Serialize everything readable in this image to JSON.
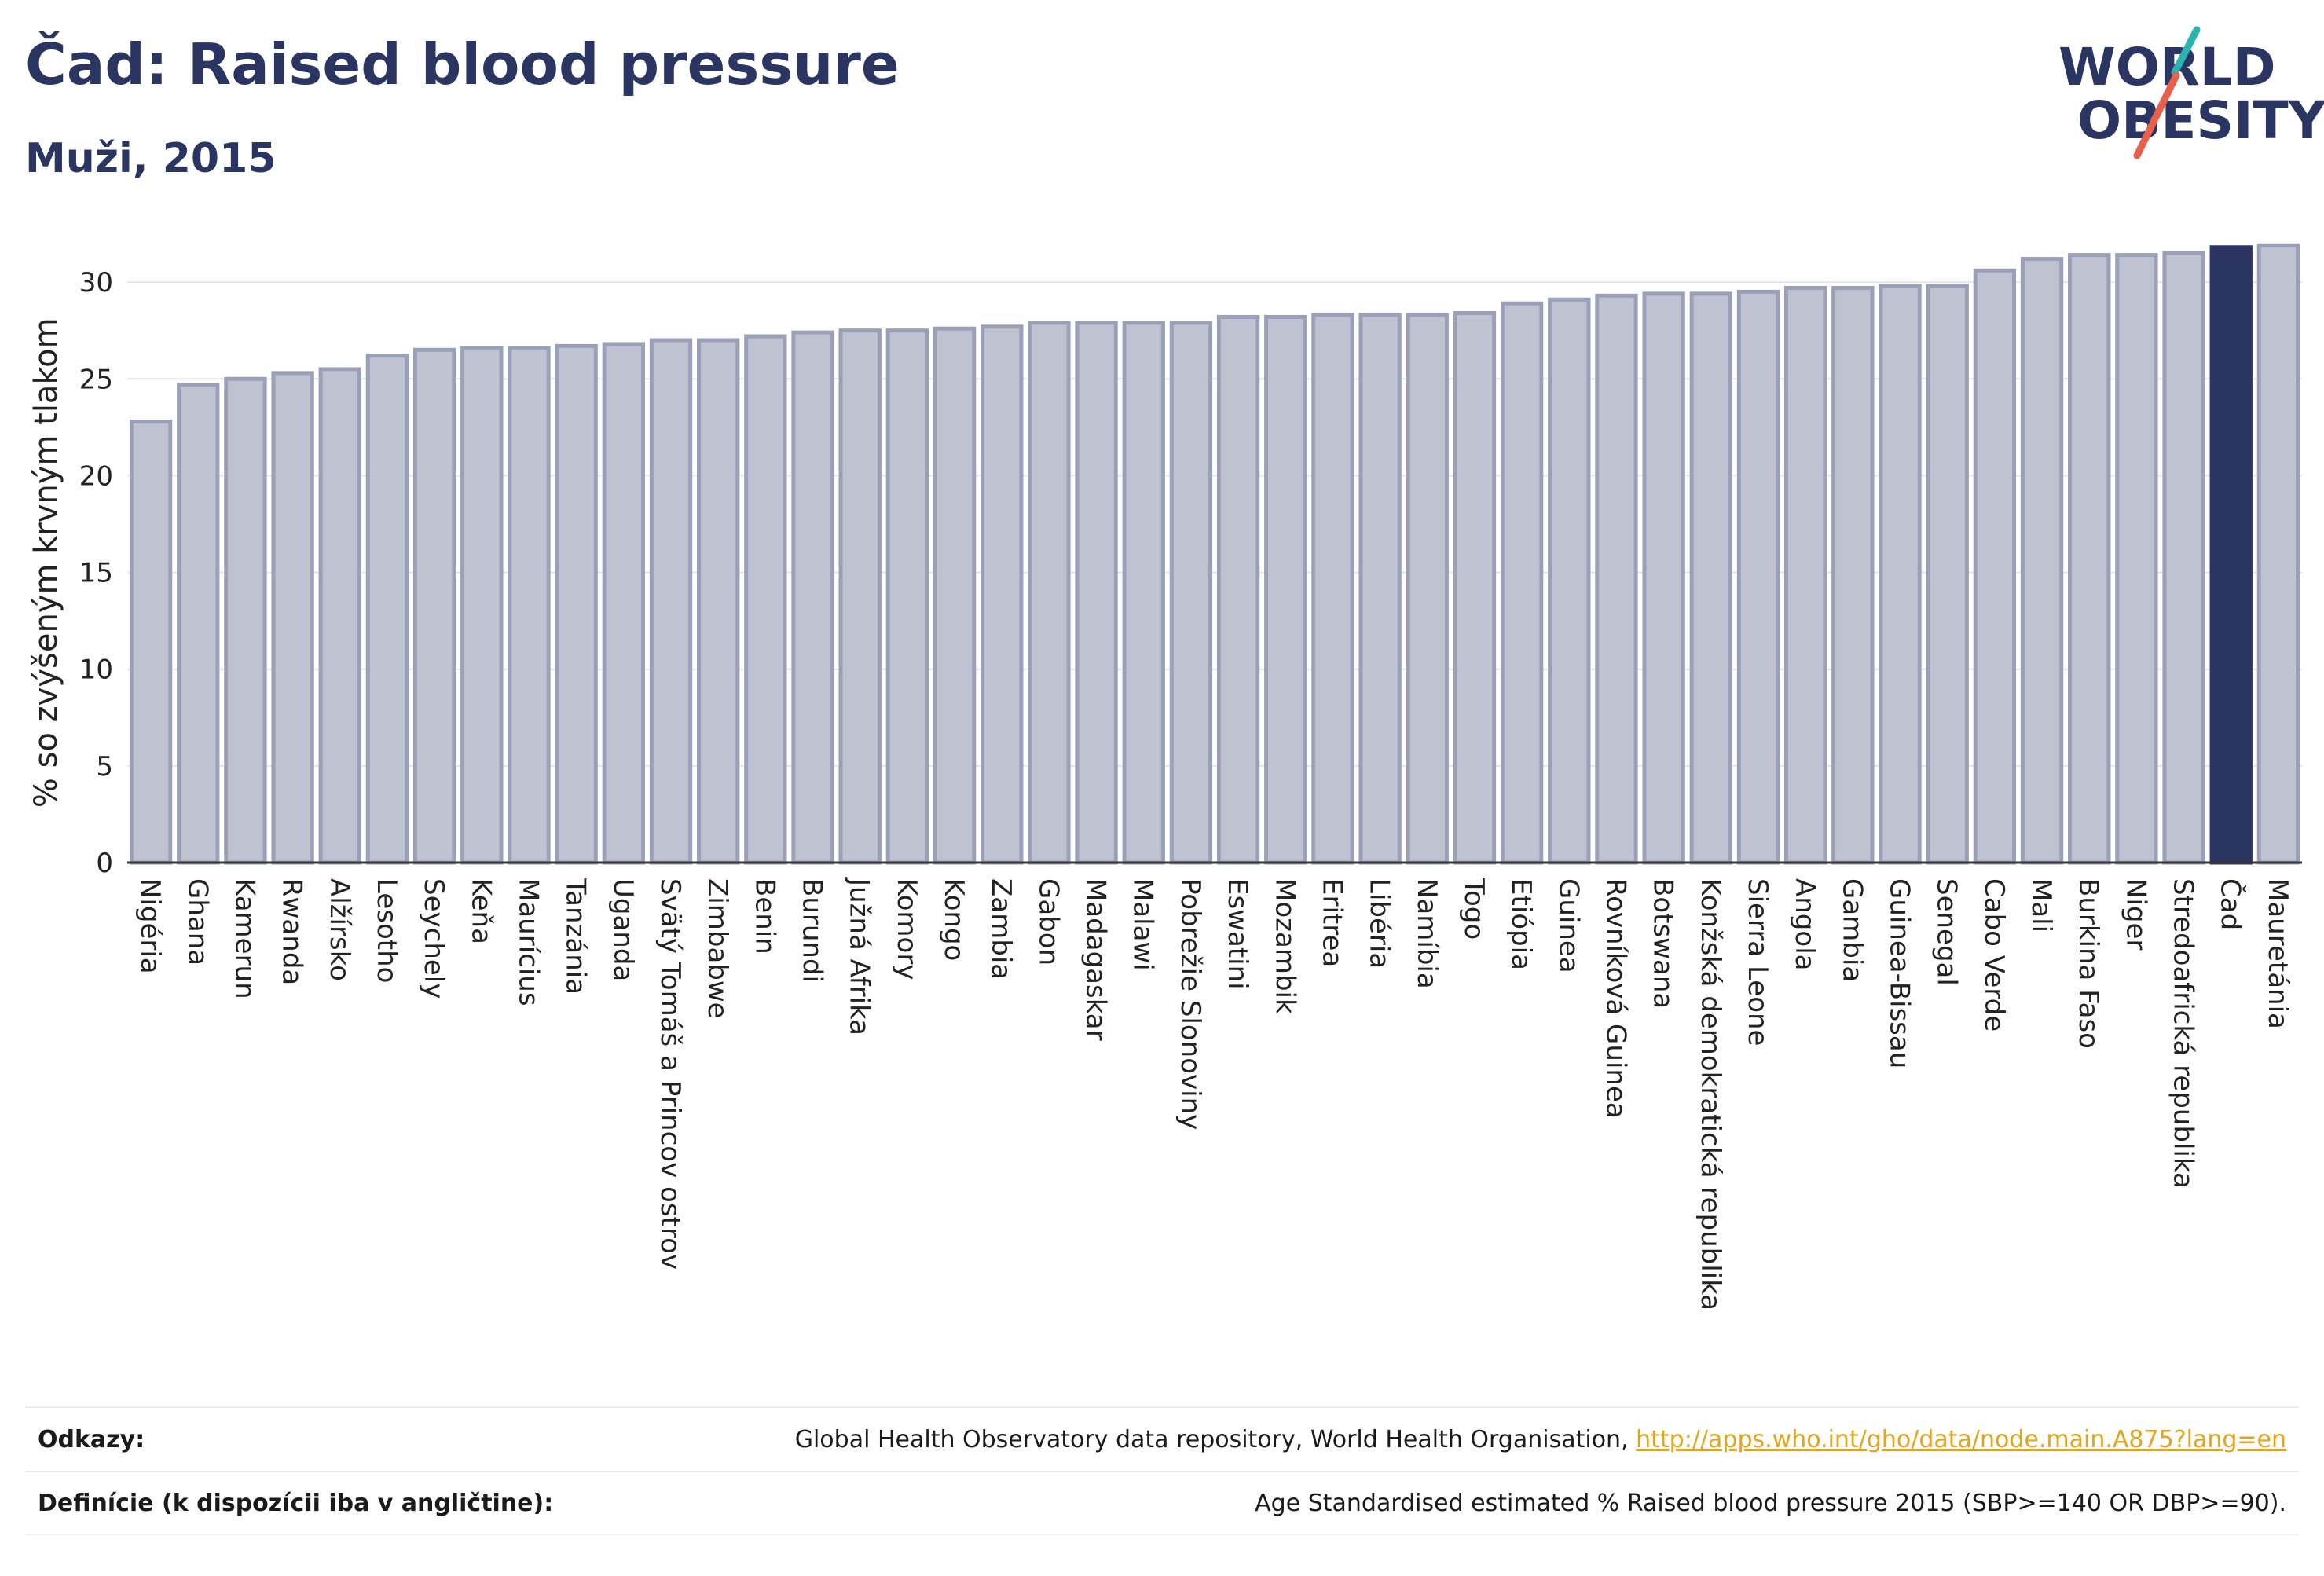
{
  "header": {
    "title": "Čad: Raised blood pressure",
    "subtitle": "Muži, 2015"
  },
  "logo": {
    "line1": "WORLD",
    "line2": "OBESITY",
    "text_color": "#2b3561",
    "slash_colors": [
      "#2ab3b1",
      "#e8604c"
    ]
  },
  "colors": {
    "bar_fill": "#bfc3d1",
    "bar_stroke": "#9aa0b8",
    "highlight": "#2b3561",
    "grid": "#e6e6e6",
    "axis": "#333333"
  },
  "chart_data": {
    "type": "bar",
    "title": "Čad: Raised blood pressure",
    "subtitle": "Muži, 2015",
    "xlabel": "",
    "ylabel": "% so zvýšeným krvným tlakom",
    "ylim": [
      0,
      33
    ],
    "yticks": [
      0,
      5,
      10,
      15,
      20,
      25,
      30
    ],
    "grid": true,
    "highlight": "Čad",
    "categories": [
      "Nigéria",
      "Ghana",
      "Kamerun",
      "Rwanda",
      "Alžírsko",
      "Lesotho",
      "Seychely",
      "Keňa",
      "Maurícius",
      "Tanzánia",
      "Uganda",
      "Svätý Tomáš a Princov ostrov",
      "Zimbabwe",
      "Benin",
      "Burundi",
      "Južná Afrika",
      "Komory",
      "Kongo",
      "Zambia",
      "Gabon",
      "Madagaskar",
      "Malawi",
      "Pobrežie Slonoviny",
      "Eswatini",
      "Mozambik",
      "Eritrea",
      "Libéria",
      "Namíbia",
      "Togo",
      "Etiópia",
      "Guinea",
      "Rovníková Guinea",
      "Botswana",
      "Konžská demokratická republika",
      "Sierra Leone",
      "Angola",
      "Gambia",
      "Guinea-Bissau",
      "Senegal",
      "Cabo Verde",
      "Mali",
      "Burkina Faso",
      "Niger",
      "Stredoafrická republika",
      "Čad",
      "Mauretánia"
    ],
    "values": [
      22.8,
      24.7,
      25.0,
      25.3,
      25.5,
      26.2,
      26.5,
      26.6,
      26.6,
      26.7,
      26.8,
      27.0,
      27.0,
      27.2,
      27.4,
      27.5,
      27.5,
      27.6,
      27.7,
      27.9,
      27.9,
      27.9,
      27.9,
      28.2,
      28.2,
      28.3,
      28.3,
      28.3,
      28.4,
      28.9,
      29.1,
      29.3,
      29.4,
      29.4,
      29.5,
      29.7,
      29.7,
      29.8,
      29.8,
      30.6,
      31.2,
      31.4,
      31.4,
      31.5,
      31.8,
      31.9
    ]
  },
  "footer": {
    "sources_label": "Odkazy:",
    "sources_text": "Global Health Observatory data repository, World Health Organisation, ",
    "sources_link": "http://apps.who.int/gho/data/node.main.A875?lang=en",
    "definition_label": "Definície (k dispozícii iba v angličtine):",
    "definition_text": "Age Standardised estimated % Raised blood pressure 2015 (SBP>=140 OR DBP>=90)."
  }
}
